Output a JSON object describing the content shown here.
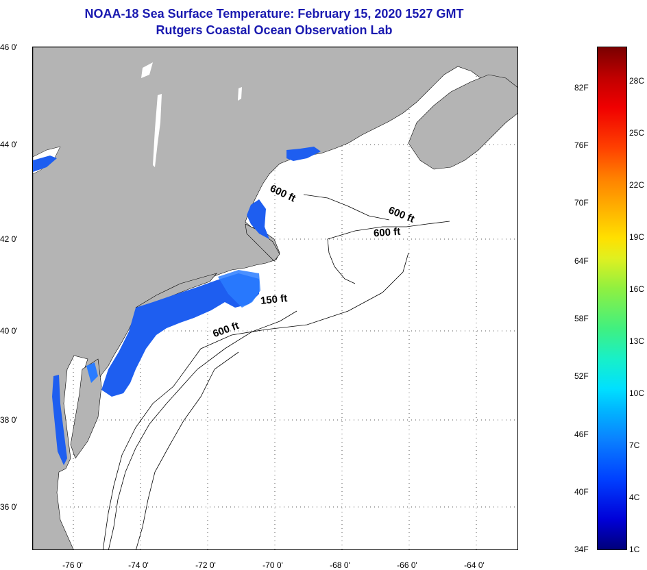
{
  "header": {
    "title": "NOAA-18 Sea Surface Temperature:  February 15, 2020 1527 GMT",
    "subtitle": "Rutgers Coastal Ocean Observation Lab"
  },
  "map": {
    "lat_labels": [
      "46 0'",
      "44 0'",
      "42 0'",
      "40 0'",
      "38 0'",
      "36 0'"
    ],
    "lon_labels": [
      "-76 0'",
      "-74 0'",
      "-72 0'",
      "-70 0'",
      "-68 0'",
      "-66 0'",
      "-64 0'"
    ],
    "contour_labels": [
      "600 ft",
      "600 ft",
      "600 ft",
      "150 ft",
      "600 ft"
    ],
    "colors": {
      "land": "#b4b4b4",
      "water_cold": "#1e5ef0",
      "water_mid": "#2a7cff",
      "no_data": "#ffffff"
    }
  },
  "colorbar": {
    "f_labels": [
      "82F",
      "76F",
      "70F",
      "64F",
      "58F",
      "52F",
      "46F",
      "40F",
      "34F"
    ],
    "c_labels": [
      "28C",
      "25C",
      "22C",
      "19C",
      "16C",
      "13C",
      "10C",
      "7C",
      "4C",
      "1C"
    ]
  }
}
